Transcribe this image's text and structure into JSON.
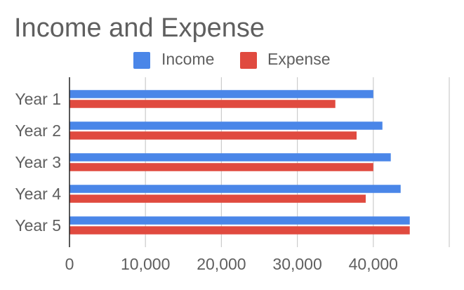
{
  "chart_data": {
    "type": "bar",
    "orientation": "horizontal",
    "title": "Income and Expense",
    "categories": [
      "Year 1",
      "Year 2",
      "Year 3",
      "Year 4",
      "Year 5"
    ],
    "series": [
      {
        "name": "Income",
        "color": "#4a86e8",
        "values": [
          40000,
          41200,
          42300,
          43600,
          44800
        ]
      },
      {
        "name": "Expense",
        "color": "#e04a3f",
        "values": [
          35000,
          37800,
          40000,
          39000,
          44800
        ]
      }
    ],
    "xlim": [
      0,
      50000
    ],
    "xticks": [
      0,
      10000,
      20000,
      30000,
      40000,
      50000
    ],
    "xtick_labels": [
      "0",
      "10,000",
      "20,000",
      "30,000",
      "40,000",
      ""
    ],
    "xlabel": "",
    "ylabel": "",
    "legend_position": "top",
    "grid": true
  }
}
